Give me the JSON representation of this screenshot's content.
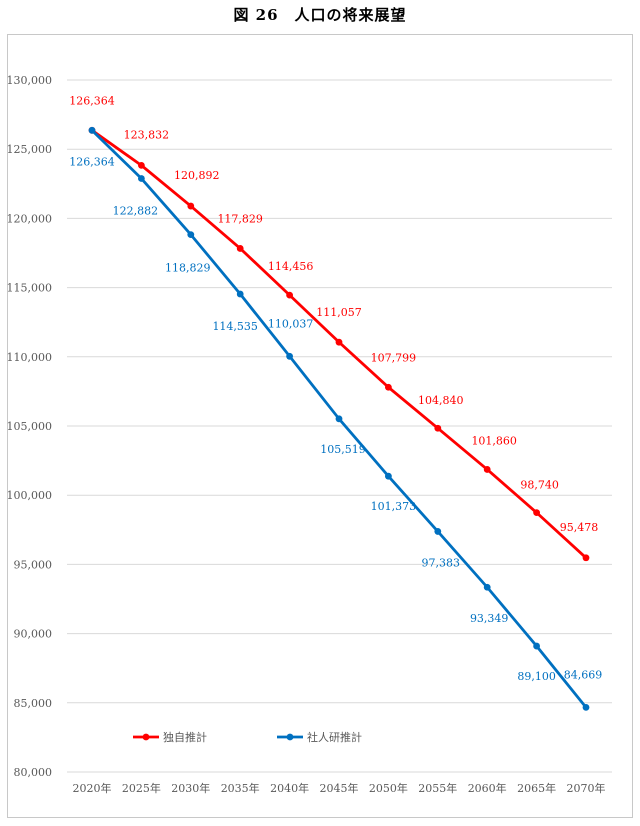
{
  "title": "図 26　人口の将来展望",
  "chart_data": {
    "type": "line",
    "title": "図 26　人口の将来展望",
    "xlabel": "",
    "ylabel": "",
    "ylim": [
      80000,
      130000
    ],
    "yticks": [
      80000,
      85000,
      90000,
      95000,
      100000,
      105000,
      110000,
      115000,
      120000,
      125000,
      130000
    ],
    "ytick_labels": [
      "80,000",
      "85,000",
      "90,000",
      "95,000",
      "100,000",
      "105,000",
      "110,000",
      "115,000",
      "120,000",
      "125,000",
      "130,000"
    ],
    "grid": true,
    "legend_position": "bottom-left",
    "categories": [
      "2020年",
      "2025年",
      "2030年",
      "2035年",
      "2040年",
      "2045年",
      "2050年",
      "2055年",
      "2060年",
      "2065年",
      "2070年"
    ],
    "series": [
      {
        "name": "独自推計",
        "color": "#ff0000",
        "values": [
          126364,
          123832,
          120892,
          117829,
          114456,
          111057,
          107799,
          104840,
          101860,
          98740,
          95478
        ],
        "labels": [
          "126,364",
          "123,832",
          "120,892",
          "117,829",
          "114,456",
          "111,057",
          "107,799",
          "104,840",
          "101,860",
          "98,740",
          "95,478"
        ]
      },
      {
        "name": "社人研推計",
        "color": "#0070c0",
        "values": [
          126364,
          122882,
          118829,
          114535,
          110037,
          105519,
          101373,
          97383,
          93349,
          89100,
          84669
        ],
        "labels": [
          "126,364",
          "122,882",
          "118,829",
          "114,535",
          "110,037",
          "105,519",
          "101,373",
          "97,383",
          "93,349",
          "89,100",
          "84,669"
        ]
      }
    ]
  }
}
